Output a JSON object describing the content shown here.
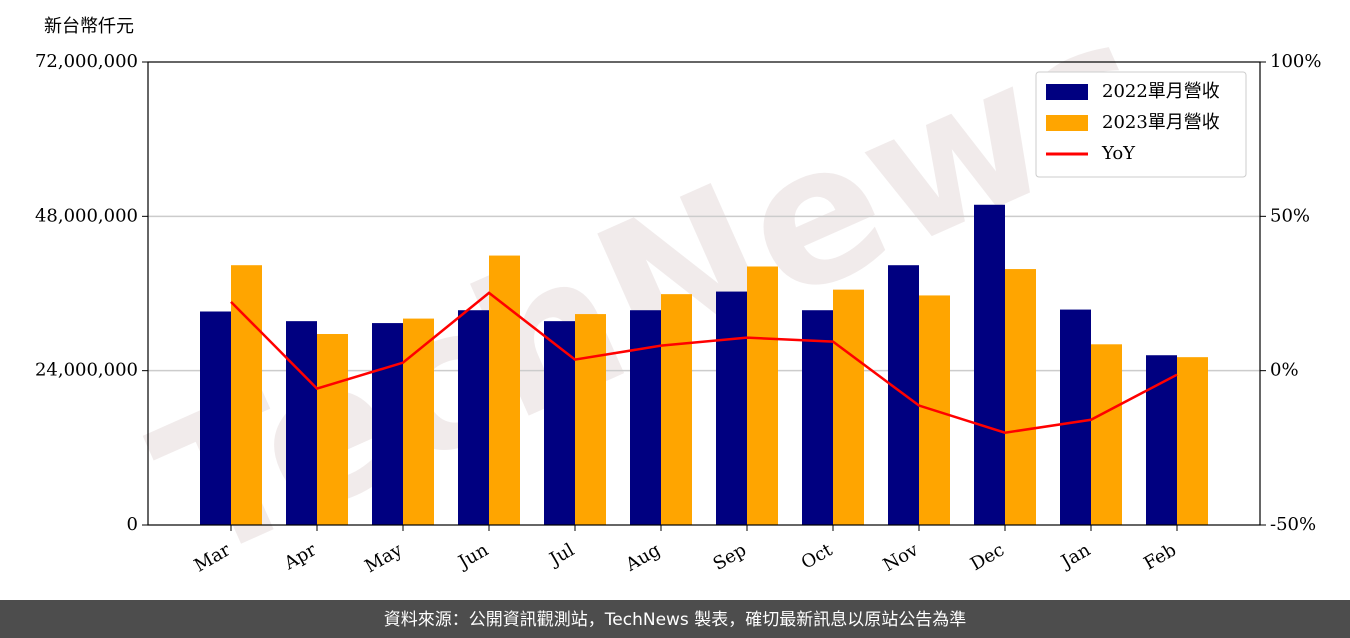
{
  "chart_data": {
    "type": "bar_line",
    "ylabel": "新台幣仟元",
    "watermark": "TechNews",
    "source": "資料來源：公開資訊觀測站，TechNews 製表，確切最新訊息以原站公告為準",
    "categories": [
      "Mar",
      "Apr",
      "May",
      "Jun",
      "Jul",
      "Aug",
      "Sep",
      "Oct",
      "Nov",
      "Dec",
      "Jan",
      "Feb"
    ],
    "series": [
      {
        "name": "2022單月營收",
        "color": "#000080",
        "type": "bar",
        "values": [
          33200000.0,
          31700000.0,
          31400000.0,
          33400000.0,
          31700000.0,
          33400000.0,
          36300000.0,
          33400000.0,
          40400000.0,
          49800000.0,
          33500000.0,
          26400000.0
        ]
      },
      {
        "name": "2023單月營收",
        "color": "#ffa500",
        "type": "bar",
        "values": [
          40400000.0,
          29700000.0,
          32100000.0,
          41900000.0,
          32800000.0,
          35900000.0,
          40200000.0,
          36600000.0,
          35700000.0,
          39800000.0,
          28100000.0,
          26100000.0
        ]
      },
      {
        "name": "YoY",
        "color": "#ff0000",
        "type": "line",
        "axis": "y2",
        "values": [
          22.3,
          -5.8,
          2.6,
          25.2,
          3.6,
          8.1,
          10.7,
          9.4,
          -11.3,
          -20.1,
          -15.9,
          -1.3
        ]
      }
    ],
    "ylim": [
      0,
      72000000
    ],
    "yticks": [
      0,
      {
        "value": 24000000,
        "label": "24,000,000"
      },
      {
        "value": 48000000,
        "label": "48,000,000"
      },
      {
        "value": 72000000,
        "label": "72,000,000"
      }
    ],
    "y2lim": [
      -50,
      100
    ],
    "y2ticks": [
      {
        "value": -50,
        "label": "-50%"
      },
      {
        "value": 0,
        "label": "0%"
      },
      {
        "value": 50,
        "label": "50%"
      },
      {
        "value": 100,
        "label": "100%"
      }
    ],
    "grid": true,
    "legend": "upper right"
  }
}
